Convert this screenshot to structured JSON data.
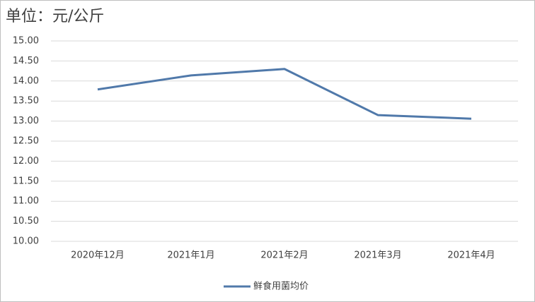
{
  "chart_data": {
    "type": "line",
    "title": "单位：元/公斤",
    "categories": [
      "2020年12月",
      "2021年1月",
      "2021年2月",
      "2021年3月",
      "2021年4月"
    ],
    "series": [
      {
        "name": "鲜食用菌均价",
        "color": "#5079aa",
        "values": [
          13.79,
          14.14,
          14.3,
          13.15,
          13.06
        ]
      }
    ],
    "ylim": [
      10,
      15
    ],
    "yticks": [
      {
        "value": 10,
        "label": "10.00"
      },
      {
        "value": 10.5,
        "label": "10.50"
      },
      {
        "value": 11,
        "label": "11.00"
      },
      {
        "value": 11.5,
        "label": "11.50"
      },
      {
        "value": 12,
        "label": "12.00"
      },
      {
        "value": 12.5,
        "label": "12.50"
      },
      {
        "value": 13,
        "label": "13.00"
      },
      {
        "value": 13.5,
        "label": "13.50"
      },
      {
        "value": 14,
        "label": "14.00"
      },
      {
        "value": 14.5,
        "label": "14.50"
      },
      {
        "value": 15,
        "label": "15.00"
      }
    ],
    "grid": true,
    "legend": "bottom"
  }
}
